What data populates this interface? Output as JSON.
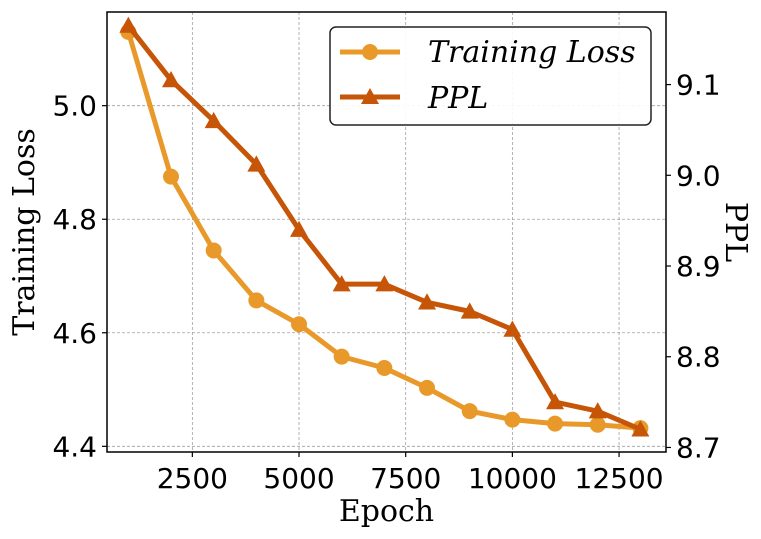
{
  "chart_data": {
    "type": "line",
    "title": "",
    "xlabel": "Epoch",
    "ylabel_left": "Training Loss",
    "ylabel_right": "PPL",
    "x": [
      1000,
      2000,
      3000,
      4000,
      5000,
      6000,
      7000,
      8000,
      9000,
      10000,
      11000,
      12000,
      13000
    ],
    "xlim": [
      500,
      13600
    ],
    "xticks": [
      2500,
      5000,
      7500,
      10000,
      12500
    ],
    "ylim_left": [
      4.39,
      5.165
    ],
    "yticks_left": [
      "4.4",
      "4.6",
      "4.8",
      "5.0"
    ],
    "ylim_right": [
      8.695,
      9.18
    ],
    "yticks_right": [
      "8.7",
      "8.8",
      "8.9",
      "9.0",
      "9.1"
    ],
    "grid": true,
    "legend_position": "top-right",
    "series": [
      {
        "name": "Training Loss",
        "axis": "left",
        "marker": "circle",
        "color": "#E8992A",
        "values": [
          5.13,
          4.875,
          4.745,
          4.657,
          4.615,
          4.558,
          4.538,
          4.503,
          4.462,
          4.447,
          4.44,
          4.438,
          4.432
        ]
      },
      {
        "name": "PPL",
        "axis": "right",
        "marker": "triangle",
        "color": "#C65508",
        "values": [
          9.165,
          9.105,
          9.06,
          9.012,
          8.94,
          8.88,
          8.88,
          8.86,
          8.85,
          8.83,
          8.75,
          8.74,
          8.72
        ]
      }
    ]
  }
}
